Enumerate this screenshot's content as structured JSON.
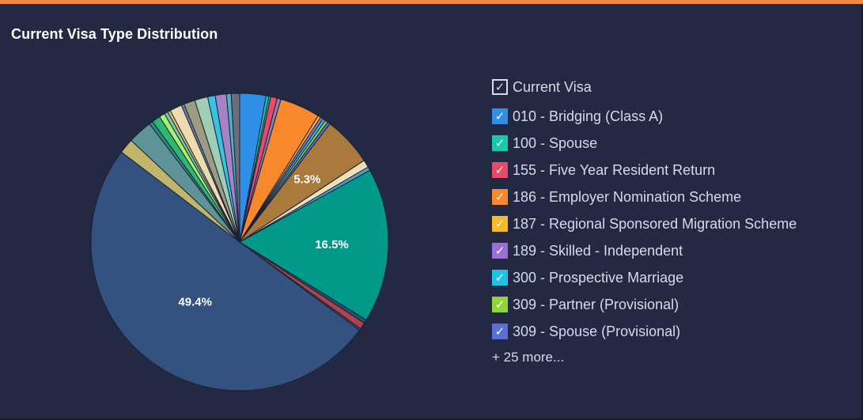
{
  "panel": {
    "title": "Current Visa Type Distribution",
    "accent_color": "#f7893b",
    "background": "#232843"
  },
  "legend": {
    "header": "Current Visa",
    "check_glyph": "✓",
    "more_label": "+ 25 more...",
    "items": [
      {
        "label": "010 - Bridging (Class A)",
        "color": "#2f8fe6"
      },
      {
        "label": "100 - Spouse",
        "color": "#17c9a6"
      },
      {
        "label": "155 - Five Year Resident Return",
        "color": "#e84a6a"
      },
      {
        "label": "186 - Employer Nomination Scheme",
        "color": "#f7892c"
      },
      {
        "label": "187 - Regional Sponsored Migration Scheme",
        "color": "#fbb927"
      },
      {
        "label": "189 - Skilled - Independent",
        "color": "#9b6fd3"
      },
      {
        "label": "300 - Prospective Marriage",
        "color": "#1fc3e3"
      },
      {
        "label": "309 - Partner (Provisional)",
        "color": "#8fd63a"
      },
      {
        "label": "309 - Spouse (Provisional)",
        "color": "#5a70d8"
      }
    ]
  },
  "chart_data": {
    "type": "pie",
    "title": "Current Visa Type Distribution",
    "start_angle_deg": 0,
    "slices": [
      {
        "value": 2.8,
        "color": "#2f8fe6"
      },
      {
        "value": 0.3,
        "color": "#17c9a6"
      },
      {
        "value": 0.2,
        "color": "#3aa8a0"
      },
      {
        "value": 0.7,
        "color": "#e84a6a"
      },
      {
        "value": 0.4,
        "color": "#8a7db8"
      },
      {
        "value": 4.3,
        "color": "#f7892c"
      },
      {
        "value": 0.3,
        "color": "#fbb927"
      },
      {
        "value": 0.3,
        "color": "#9b6fd3"
      },
      {
        "value": 0.3,
        "color": "#1fc3e3"
      },
      {
        "value": 0.3,
        "color": "#8fd63a"
      },
      {
        "value": 0.3,
        "color": "#5a70d8"
      },
      {
        "value": 5.3,
        "color": "#aa7a3c",
        "label": "5.3%"
      },
      {
        "value": 0.8,
        "color": "#f1dfb6"
      },
      {
        "value": 0.4,
        "color": "#4d9fc7"
      },
      {
        "value": 16.5,
        "color": "#00998a",
        "label": "16.5%"
      },
      {
        "value": 0.4,
        "color": "#15596a"
      },
      {
        "value": 0.7,
        "color": "#b2414c"
      },
      {
        "value": 0.2,
        "color": "#3a4a6a"
      },
      {
        "value": 49.4,
        "color": "#34527f",
        "label": "49.4%"
      },
      {
        "value": 1.6,
        "color": "#bfb56b"
      },
      {
        "value": 2.6,
        "color": "#5e9397"
      },
      {
        "value": 0.4,
        "color": "#2d8c7c"
      },
      {
        "value": 0.9,
        "color": "#2eb673"
      },
      {
        "value": 0.6,
        "color": "#a7f26e"
      },
      {
        "value": 0.4,
        "color": "#7cc4a8"
      },
      {
        "value": 0.3,
        "color": "#d9c774"
      },
      {
        "value": 1.3,
        "color": "#efdcae"
      },
      {
        "value": 0.3,
        "color": "#6b85a8"
      },
      {
        "value": 1.2,
        "color": "#9d9c80"
      },
      {
        "value": 1.4,
        "color": "#9ecfb6"
      },
      {
        "value": 0.8,
        "color": "#38c4e0"
      },
      {
        "value": 1.2,
        "color": "#a484c7"
      },
      {
        "value": 0.5,
        "color": "#4fb0c8"
      },
      {
        "value": 0.9,
        "color": "#6b6d79"
      }
    ]
  }
}
